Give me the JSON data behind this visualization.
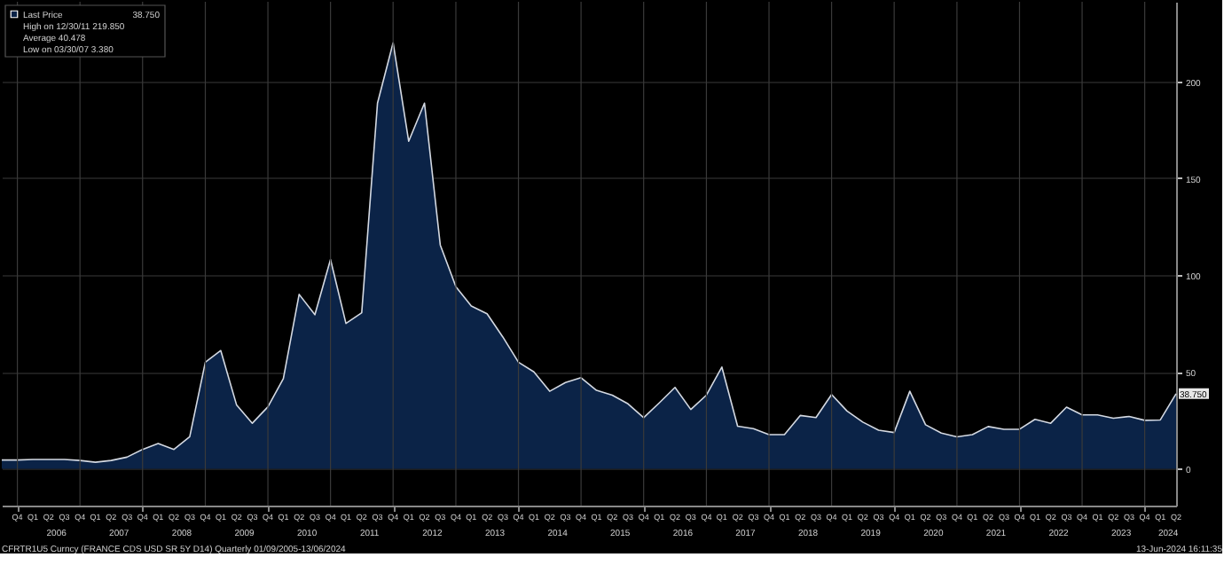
{
  "chart_data": {
    "type": "area",
    "x": [
      "2005-09",
      "2005-12",
      "2006-03",
      "2006-06",
      "2006-09",
      "2006-12",
      "2007-03",
      "2007-06",
      "2007-09",
      "2007-12",
      "2008-03",
      "2008-06",
      "2008-09",
      "2008-12",
      "2009-03",
      "2009-06",
      "2009-09",
      "2009-12",
      "2010-03",
      "2010-06",
      "2010-09",
      "2010-12",
      "2011-03",
      "2011-06",
      "2011-09",
      "2011-12",
      "2012-03",
      "2012-06",
      "2012-09",
      "2012-12",
      "2013-03",
      "2013-06",
      "2013-09",
      "2013-12",
      "2014-03",
      "2014-06",
      "2014-09",
      "2014-12",
      "2015-03",
      "2015-06",
      "2015-09",
      "2015-12",
      "2016-03",
      "2016-06",
      "2016-09",
      "2016-12",
      "2017-03",
      "2017-06",
      "2017-09",
      "2017-12",
      "2018-03",
      "2018-06",
      "2018-09",
      "2018-12",
      "2019-03",
      "2019-06",
      "2019-09",
      "2019-12",
      "2020-03",
      "2020-06",
      "2020-09",
      "2020-12",
      "2021-03",
      "2021-06",
      "2021-09",
      "2021-12",
      "2022-03",
      "2022-06",
      "2022-09",
      "2022-12",
      "2023-03",
      "2023-06",
      "2023-09",
      "2023-12",
      "2024-03",
      "2024-06"
    ],
    "series": [
      {
        "name": "Last Price",
        "color": "#0b2347",
        "values": [
          4.5,
          4.5,
          4.8,
          4.8,
          4.8,
          4.3,
          3.38,
          4.3,
          6,
          10,
          13,
          10,
          16.5,
          55,
          61,
          33,
          23.5,
          32,
          46.5,
          90,
          79.5,
          108,
          75,
          80.5,
          188.7,
          219.85,
          169,
          188.7,
          115.5,
          94,
          84,
          80,
          68,
          55,
          50,
          40,
          44.5,
          47,
          40.5,
          38,
          33.5,
          26.4,
          34,
          42,
          30.6,
          38,
          52.5,
          22,
          20.7,
          17.6,
          17.6,
          27.5,
          26.4,
          38.3,
          29.8,
          24.1,
          19.9,
          18.7,
          40,
          22.7,
          18.4,
          16.5,
          17.6,
          21.8,
          20.4,
          20.4,
          25.5,
          23.5,
          31.8,
          27.8,
          27.8,
          26.1,
          27,
          25,
          25.2,
          38.75
        ],
        "value_labels": [
          null,
          null,
          null,
          null,
          null,
          null,
          null,
          null,
          null,
          null,
          null,
          null,
          null,
          null,
          null,
          null,
          null,
          null,
          null,
          null,
          null,
          null,
          null,
          null,
          null,
          null,
          null,
          null,
          null,
          null,
          null,
          null,
          null,
          null,
          null,
          null,
          null,
          null,
          null,
          null,
          null,
          null,
          null,
          null,
          null,
          null,
          null,
          null,
          null,
          null,
          null,
          null,
          null,
          null,
          null,
          null,
          null,
          null,
          null,
          null,
          null,
          null,
          null,
          null,
          null,
          null,
          null,
          null,
          null,
          null,
          null,
          null,
          null,
          null,
          null,
          "38.750"
        ]
      }
    ],
    "xlim": [
      "2005-09",
      "2024-06"
    ],
    "xticks": [
      {
        "value": "2005-12",
        "label": "Q4"
      },
      {
        "value": "2006-03",
        "label": "Q1"
      },
      {
        "value": "2006-06",
        "label": "Q2"
      },
      {
        "value": "2006-09",
        "label": "Q3"
      },
      {
        "value": "2006-12",
        "label": "Q4"
      },
      {
        "value": "2007-03",
        "label": "Q1"
      },
      {
        "value": "2007-06",
        "label": "Q2"
      },
      {
        "value": "2007-09",
        "label": "Q3"
      },
      {
        "value": "2007-12",
        "label": "Q4"
      },
      {
        "value": "2008-03",
        "label": "Q1"
      },
      {
        "value": "2008-06",
        "label": "Q2"
      },
      {
        "value": "2008-09",
        "label": "Q3"
      },
      {
        "value": "2008-12",
        "label": "Q4"
      },
      {
        "value": "2009-03",
        "label": "Q1"
      },
      {
        "value": "2009-06",
        "label": "Q2"
      },
      {
        "value": "2009-09",
        "label": "Q3"
      },
      {
        "value": "2009-12",
        "label": "Q4"
      },
      {
        "value": "2010-03",
        "label": "Q1"
      },
      {
        "value": "2010-06",
        "label": "Q2"
      },
      {
        "value": "2010-09",
        "label": "Q3"
      },
      {
        "value": "2010-12",
        "label": "Q4"
      },
      {
        "value": "2011-03",
        "label": "Q1"
      },
      {
        "value": "2011-06",
        "label": "Q2"
      },
      {
        "value": "2011-09",
        "label": "Q3"
      },
      {
        "value": "2011-12",
        "label": "Q4"
      },
      {
        "value": "2012-03",
        "label": "Q1"
      },
      {
        "value": "2012-06",
        "label": "Q2"
      },
      {
        "value": "2012-09",
        "label": "Q3"
      },
      {
        "value": "2012-12",
        "label": "Q4"
      },
      {
        "value": "2013-03",
        "label": "Q1"
      },
      {
        "value": "2013-06",
        "label": "Q2"
      },
      {
        "value": "2013-09",
        "label": "Q3"
      },
      {
        "value": "2013-12",
        "label": "Q4"
      },
      {
        "value": "2014-03",
        "label": "Q1"
      },
      {
        "value": "2014-06",
        "label": "Q2"
      },
      {
        "value": "2014-09",
        "label": "Q3"
      },
      {
        "value": "2014-12",
        "label": "Q4"
      },
      {
        "value": "2015-03",
        "label": "Q1"
      },
      {
        "value": "2015-06",
        "label": "Q2"
      },
      {
        "value": "2015-09",
        "label": "Q3"
      },
      {
        "value": "2015-12",
        "label": "Q4"
      },
      {
        "value": "2016-03",
        "label": "Q1"
      },
      {
        "value": "2016-06",
        "label": "Q2"
      },
      {
        "value": "2016-09",
        "label": "Q3"
      },
      {
        "value": "2016-12",
        "label": "Q4"
      },
      {
        "value": "2017-03",
        "label": "Q1"
      },
      {
        "value": "2017-06",
        "label": "Q2"
      },
      {
        "value": "2017-09",
        "label": "Q3"
      },
      {
        "value": "2017-12",
        "label": "Q4"
      },
      {
        "value": "2018-03",
        "label": "Q1"
      },
      {
        "value": "2018-06",
        "label": "Q2"
      },
      {
        "value": "2018-09",
        "label": "Q3"
      },
      {
        "value": "2018-12",
        "label": "Q4"
      },
      {
        "value": "2019-03",
        "label": "Q1"
      },
      {
        "value": "2019-06",
        "label": "Q2"
      },
      {
        "value": "2019-09",
        "label": "Q3"
      },
      {
        "value": "2019-12",
        "label": "Q4"
      },
      {
        "value": "2020-03",
        "label": "Q1"
      },
      {
        "value": "2020-06",
        "label": "Q2"
      },
      {
        "value": "2020-09",
        "label": "Q3"
      },
      {
        "value": "2020-12",
        "label": "Q4"
      },
      {
        "value": "2021-03",
        "label": "Q1"
      },
      {
        "value": "2021-06",
        "label": "Q2"
      },
      {
        "value": "2021-09",
        "label": "Q3"
      },
      {
        "value": "2021-12",
        "label": "Q4"
      },
      {
        "value": "2022-03",
        "label": "Q1"
      },
      {
        "value": "2022-06",
        "label": "Q2"
      },
      {
        "value": "2022-09",
        "label": "Q3"
      },
      {
        "value": "2022-12",
        "label": "Q4"
      },
      {
        "value": "2023-03",
        "label": "Q1"
      },
      {
        "value": "2023-06",
        "label": "Q2"
      },
      {
        "value": "2023-09",
        "label": "Q3"
      },
      {
        "value": "2023-12",
        "label": "Q4"
      },
      {
        "value": "2024-03",
        "label": "Q1"
      },
      {
        "value": "2024-06",
        "label": "Q2"
      }
    ],
    "ylim": [
      -19,
      241
    ],
    "yticks": [
      0,
      50,
      100,
      150,
      200
    ],
    "grid": true,
    "legend": "top left",
    "annotations": [
      "High on 12/30/11 219.850",
      "Average 40.478",
      "Low on 03/30/07 3.380",
      "CFRTR1U5 Curncy (FRANCE CDS USD SR 5Y D14)   Quarterly 01/09/2005-13/06/2024",
      "13-Jun-2024 16:11:35",
      "2006",
      "2007",
      "2008",
      "2009",
      "2010",
      "2011",
      "2012",
      "2013",
      "2014",
      "2015",
      "2016",
      "2017",
      "2018",
      "2019",
      "2020",
      "2021",
      "2022",
      "2023",
      "2024"
    ]
  }
}
